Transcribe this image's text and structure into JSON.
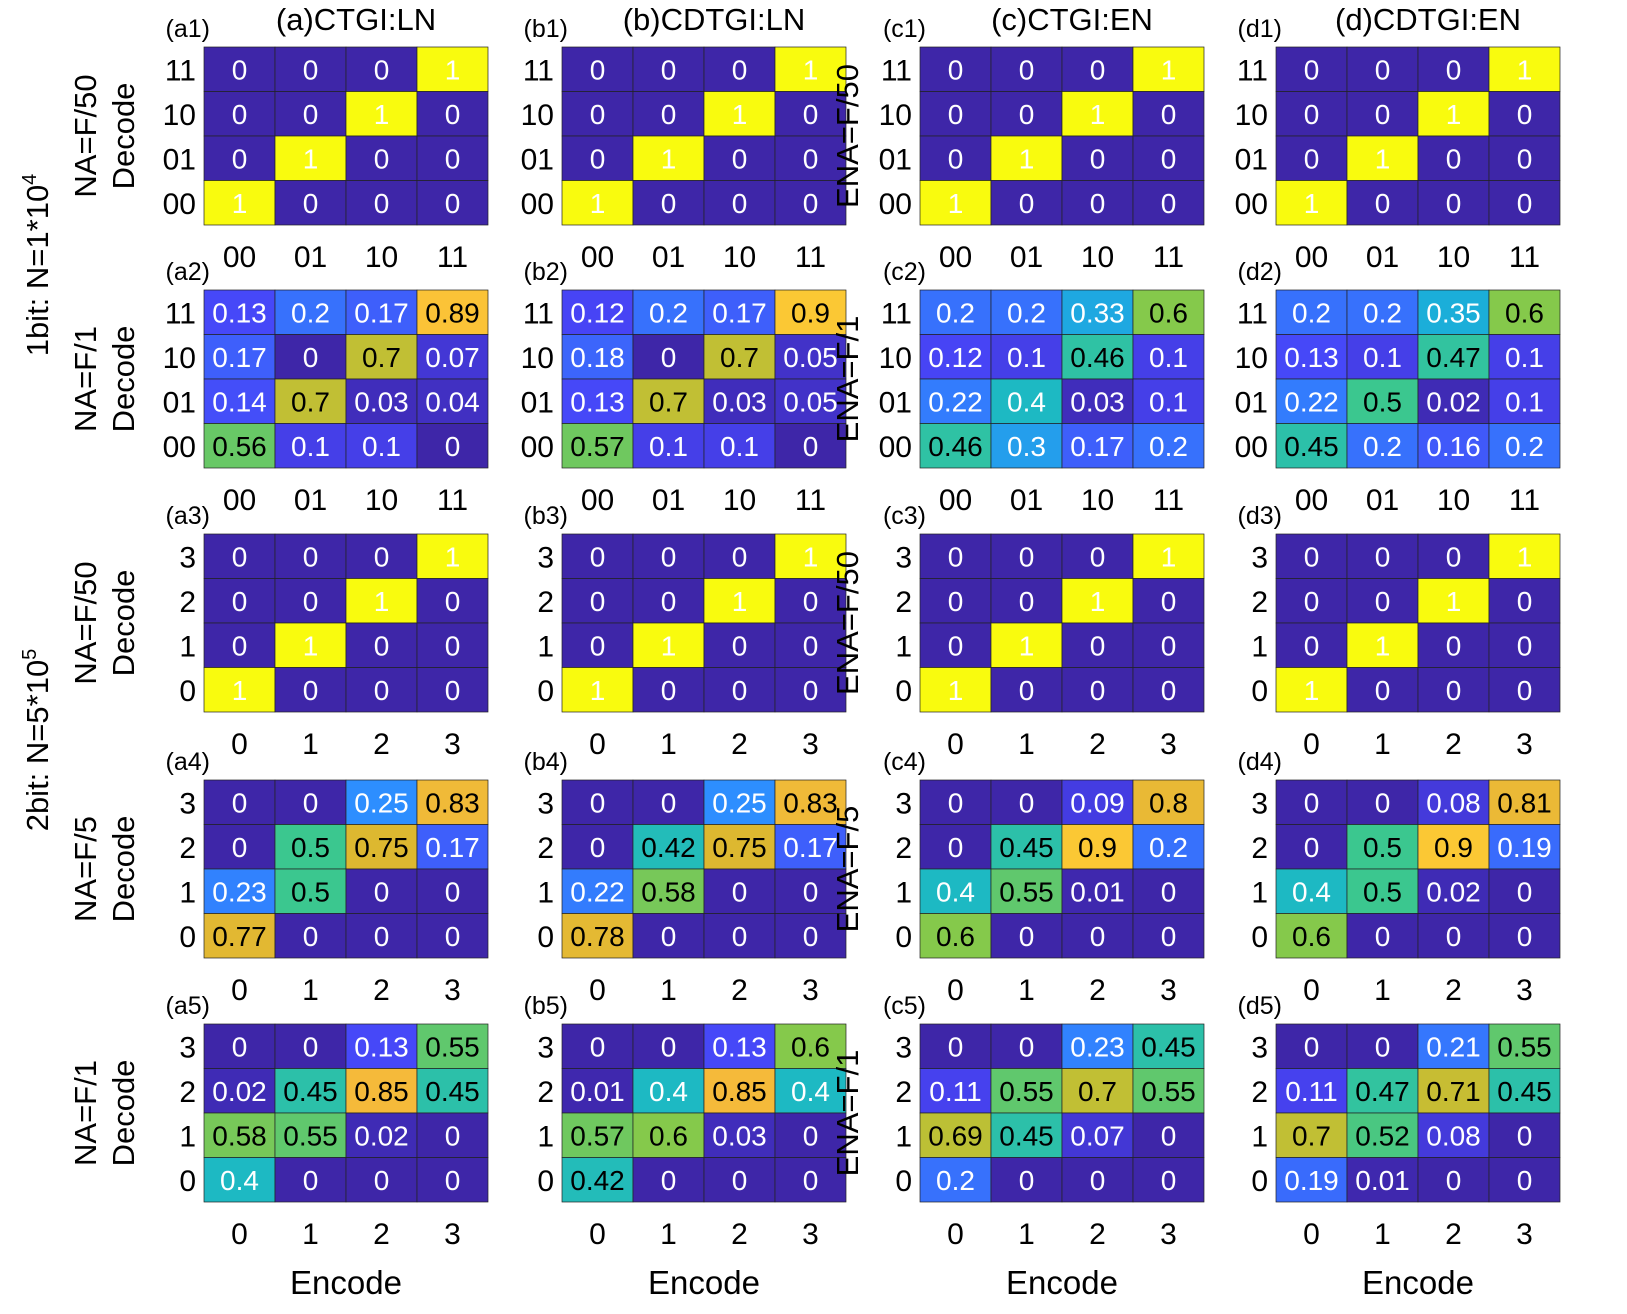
{
  "figure": {
    "row_group_labels": [
      {
        "id": "g1",
        "text": "1bit: N=1*10",
        "sup": "4"
      },
      {
        "id": "g2",
        "text": "2bit: N=5*10",
        "sup": "5"
      }
    ],
    "column_titles": [
      "(a)CTGI:LN",
      "(b)CDTGI:LN",
      "(c)CTGI:EN",
      "(d)CDTGI:EN"
    ],
    "xlabel": "Encode",
    "ylabel": "Decode",
    "colormap": [
      "#3e26a8",
      "#4745f8",
      "#2d8eff",
      "#16b6d0",
      "#3bc78f",
      "#98c93a",
      "#ddb830",
      "#fbbb3d",
      "#f9fb0e"
    ]
  },
  "chart_data": [
    {
      "type": "heatmap",
      "panel": "(a1)",
      "row_label": "NA=F/50",
      "ylabel": "Decode",
      "categories_x": [
        "00",
        "01",
        "10",
        "11"
      ],
      "categories_y": [
        "11",
        "10",
        "01",
        "00"
      ],
      "x_tick_labels": [
        "00",
        "01",
        "10",
        "11"
      ],
      "xlabel": "",
      "values": [
        [
          0,
          0,
          0,
          1
        ],
        [
          0,
          0,
          1,
          0
        ],
        [
          0,
          1,
          0,
          0
        ],
        [
          1,
          0,
          0,
          0
        ]
      ]
    },
    {
      "type": "heatmap",
      "panel": "(b1)",
      "row_label": "",
      "ylabel": "",
      "categories_x": [
        "00",
        "01",
        "10",
        "11"
      ],
      "categories_y": [
        "11",
        "10",
        "01",
        "00"
      ],
      "x_tick_labels": [
        "00",
        "01",
        "10",
        "11"
      ],
      "xlabel": "",
      "values": [
        [
          0,
          0,
          0,
          1
        ],
        [
          0,
          0,
          1,
          0
        ],
        [
          0,
          1,
          0,
          0
        ],
        [
          1,
          0,
          0,
          0
        ]
      ]
    },
    {
      "type": "heatmap",
      "panel": "(c1)",
      "row_label": "ENA=F/50",
      "ylabel": "",
      "categories_x": [
        "00",
        "01",
        "10",
        "11"
      ],
      "categories_y": [
        "11",
        "10",
        "01",
        "00"
      ],
      "x_tick_labels": [
        "00",
        "01",
        "10",
        "11"
      ],
      "xlabel": "",
      "values": [
        [
          0,
          0,
          0,
          1
        ],
        [
          0,
          0,
          1,
          0
        ],
        [
          0,
          1,
          0,
          0
        ],
        [
          1,
          0,
          0,
          0
        ]
      ]
    },
    {
      "type": "heatmap",
      "panel": "(d1)",
      "row_label": "",
      "ylabel": "",
      "categories_x": [
        "00",
        "01",
        "10",
        "11"
      ],
      "categories_y": [
        "11",
        "10",
        "01",
        "00"
      ],
      "x_tick_labels": [
        "00",
        "01",
        "10",
        "11"
      ],
      "xlabel": "",
      "values": [
        [
          0,
          0,
          0,
          1
        ],
        [
          0,
          0,
          1,
          0
        ],
        [
          0,
          1,
          0,
          0
        ],
        [
          1,
          0,
          0,
          0
        ]
      ]
    },
    {
      "type": "heatmap",
      "panel": "(a2)",
      "row_label": "NA=F/1",
      "ylabel": "Decode",
      "categories_x": [
        "00",
        "01",
        "10",
        "11"
      ],
      "categories_y": [
        "11",
        "10",
        "01",
        "00"
      ],
      "x_tick_labels": [
        "00",
        "01",
        "10",
        "11"
      ],
      "xlabel": "",
      "values": [
        [
          0.13,
          0.2,
          0.17,
          0.89
        ],
        [
          0.17,
          0,
          0.7,
          0.07
        ],
        [
          0.14,
          0.7,
          0.03,
          0.04
        ],
        [
          0.56,
          0.1,
          0.1,
          0
        ]
      ]
    },
    {
      "type": "heatmap",
      "panel": "(b2)",
      "row_label": "",
      "ylabel": "",
      "categories_x": [
        "00",
        "01",
        "10",
        "11"
      ],
      "categories_y": [
        "11",
        "10",
        "01",
        "00"
      ],
      "x_tick_labels": [
        "00",
        "01",
        "10",
        "11"
      ],
      "xlabel": "",
      "values": [
        [
          0.12,
          0.2,
          0.17,
          0.9
        ],
        [
          0.18,
          0,
          0.7,
          0.05
        ],
        [
          0.13,
          0.7,
          0.03,
          0.05
        ],
        [
          0.57,
          0.1,
          0.1,
          0
        ]
      ]
    },
    {
      "type": "heatmap",
      "panel": "(c2)",
      "row_label": "ENA=F/1",
      "ylabel": "",
      "categories_x": [
        "00",
        "01",
        "10",
        "11"
      ],
      "categories_y": [
        "11",
        "10",
        "01",
        "00"
      ],
      "x_tick_labels": [
        "00",
        "01",
        "10",
        "11"
      ],
      "xlabel": "",
      "values": [
        [
          0.2,
          0.2,
          0.33,
          0.6
        ],
        [
          0.12,
          0.1,
          0.46,
          0.1
        ],
        [
          0.22,
          0.4,
          0.03,
          0.1
        ],
        [
          0.46,
          0.3,
          0.17,
          0.2
        ]
      ]
    },
    {
      "type": "heatmap",
      "panel": "(d2)",
      "row_label": "",
      "ylabel": "",
      "categories_x": [
        "00",
        "01",
        "10",
        "11"
      ],
      "categories_y": [
        "11",
        "10",
        "01",
        "00"
      ],
      "x_tick_labels": [
        "00",
        "01",
        "10",
        "11"
      ],
      "xlabel": "",
      "values": [
        [
          0.2,
          0.2,
          0.35,
          0.6
        ],
        [
          0.13,
          0.1,
          0.47,
          0.1
        ],
        [
          0.22,
          0.5,
          0.02,
          0.1
        ],
        [
          0.45,
          0.2,
          0.16,
          0.2
        ]
      ]
    },
    {
      "type": "heatmap",
      "panel": "(a3)",
      "row_label": "NA=F/50",
      "ylabel": "Decode",
      "categories_x": [
        "0",
        "1",
        "2",
        "3"
      ],
      "categories_y": [
        "3",
        "2",
        "1",
        "0"
      ],
      "x_tick_labels": [
        "0",
        "1",
        "2",
        "3"
      ],
      "xlabel": "",
      "values": [
        [
          0,
          0,
          0,
          1
        ],
        [
          0,
          0,
          1,
          0
        ],
        [
          0,
          1,
          0,
          0
        ],
        [
          1,
          0,
          0,
          0
        ]
      ]
    },
    {
      "type": "heatmap",
      "panel": "(b3)",
      "row_label": "",
      "ylabel": "",
      "categories_x": [
        "0",
        "1",
        "2",
        "3"
      ],
      "categories_y": [
        "3",
        "2",
        "1",
        "0"
      ],
      "x_tick_labels": [
        "0",
        "1",
        "2",
        "3"
      ],
      "xlabel": "",
      "values": [
        [
          0,
          0,
          0,
          1
        ],
        [
          0,
          0,
          1,
          0
        ],
        [
          0,
          1,
          0,
          0
        ],
        [
          1,
          0,
          0,
          0
        ]
      ]
    },
    {
      "type": "heatmap",
      "panel": "(c3)",
      "row_label": "ENA=F/50",
      "ylabel": "",
      "categories_x": [
        "0",
        "1",
        "2",
        "3"
      ],
      "categories_y": [
        "3",
        "2",
        "1",
        "0"
      ],
      "x_tick_labels": [
        "0",
        "1",
        "2",
        "3"
      ],
      "xlabel": "",
      "values": [
        [
          0,
          0,
          0,
          1
        ],
        [
          0,
          0,
          1,
          0
        ],
        [
          0,
          1,
          0,
          0
        ],
        [
          1,
          0,
          0,
          0
        ]
      ]
    },
    {
      "type": "heatmap",
      "panel": "(d3)",
      "row_label": "",
      "ylabel": "",
      "categories_x": [
        "0",
        "1",
        "2",
        "3"
      ],
      "categories_y": [
        "3",
        "2",
        "1",
        "0"
      ],
      "x_tick_labels": [
        "0",
        "1",
        "2",
        "3"
      ],
      "xlabel": "",
      "values": [
        [
          0,
          0,
          0,
          1
        ],
        [
          0,
          0,
          1,
          0
        ],
        [
          0,
          1,
          0,
          0
        ],
        [
          1,
          0,
          0,
          0
        ]
      ]
    },
    {
      "type": "heatmap",
      "panel": "(a4)",
      "row_label": "NA=F/5",
      "ylabel": "Decode",
      "categories_x": [
        "0",
        "1",
        "2",
        "3"
      ],
      "categories_y": [
        "3",
        "2",
        "1",
        "0"
      ],
      "x_tick_labels": [
        "0",
        "1",
        "2",
        "3"
      ],
      "xlabel": "",
      "values": [
        [
          0,
          0,
          0.25,
          0.83
        ],
        [
          0,
          0.5,
          0.75,
          0.17
        ],
        [
          0.23,
          0.5,
          0,
          0
        ],
        [
          0.77,
          0,
          0,
          0
        ]
      ]
    },
    {
      "type": "heatmap",
      "panel": "(b4)",
      "row_label": "",
      "ylabel": "",
      "categories_x": [
        "0",
        "1",
        "2",
        "3"
      ],
      "categories_y": [
        "3",
        "2",
        "1",
        "0"
      ],
      "x_tick_labels": [
        "0",
        "1",
        "2",
        "3"
      ],
      "xlabel": "",
      "values": [
        [
          0,
          0,
          0.25,
          0.83
        ],
        [
          0,
          0.42,
          0.75,
          0.17
        ],
        [
          0.22,
          0.58,
          0,
          0
        ],
        [
          0.78,
          0,
          0,
          0
        ]
      ]
    },
    {
      "type": "heatmap",
      "panel": "(c4)",
      "row_label": "ENA=F/5",
      "ylabel": "",
      "categories_x": [
        "0",
        "1",
        "2",
        "3"
      ],
      "categories_y": [
        "3",
        "2",
        "1",
        "0"
      ],
      "x_tick_labels": [
        "0",
        "1",
        "2",
        "3"
      ],
      "xlabel": "",
      "values": [
        [
          0,
          0,
          0.09,
          0.8
        ],
        [
          0,
          0.45,
          0.9,
          0.2
        ],
        [
          0.4,
          0.55,
          0.01,
          0
        ],
        [
          0.6,
          0,
          0,
          0
        ]
      ]
    },
    {
      "type": "heatmap",
      "panel": "(d4)",
      "row_label": "",
      "ylabel": "",
      "categories_x": [
        "0",
        "1",
        "2",
        "3"
      ],
      "categories_y": [
        "3",
        "2",
        "1",
        "0"
      ],
      "x_tick_labels": [
        "0",
        "1",
        "2",
        "3"
      ],
      "xlabel": "",
      "values": [
        [
          0,
          0,
          0.08,
          0.81
        ],
        [
          0,
          0.5,
          0.9,
          0.19
        ],
        [
          0.4,
          0.5,
          0.02,
          0
        ],
        [
          0.6,
          0,
          0,
          0
        ]
      ]
    },
    {
      "type": "heatmap",
      "panel": "(a5)",
      "row_label": "NA=F/1",
      "ylabel": "Decode",
      "categories_x": [
        "0",
        "1",
        "2",
        "3"
      ],
      "categories_y": [
        "3",
        "2",
        "1",
        "0"
      ],
      "x_tick_labels": [
        "0",
        "1",
        "2",
        "3"
      ],
      "xlabel": "Encode",
      "values": [
        [
          0,
          0,
          0.13,
          0.55
        ],
        [
          0.02,
          0.45,
          0.85,
          0.45
        ],
        [
          0.58,
          0.55,
          0.02,
          0
        ],
        [
          0.4,
          0,
          0,
          0
        ]
      ]
    },
    {
      "type": "heatmap",
      "panel": "(b5)",
      "row_label": "",
      "ylabel": "",
      "categories_x": [
        "0",
        "1",
        "2",
        "3"
      ],
      "categories_y": [
        "3",
        "2",
        "1",
        "0"
      ],
      "x_tick_labels": [
        "0",
        "1",
        "2",
        "3"
      ],
      "xlabel": "Encode",
      "values": [
        [
          0,
          0,
          0.13,
          0.6
        ],
        [
          0.01,
          0.4,
          0.85,
          0.4
        ],
        [
          0.57,
          0.6,
          0.03,
          0
        ],
        [
          0.42,
          0,
          0,
          0
        ]
      ]
    },
    {
      "type": "heatmap",
      "panel": "(c5)",
      "row_label": "ENA=F/1",
      "ylabel": "",
      "categories_x": [
        "0",
        "1",
        "2",
        "3"
      ],
      "categories_y": [
        "3",
        "2",
        "1",
        "0"
      ],
      "x_tick_labels": [
        "0",
        "1",
        "2",
        "3"
      ],
      "xlabel": "Encode",
      "values": [
        [
          0,
          0,
          0.23,
          0.45
        ],
        [
          0.11,
          0.55,
          0.7,
          0.55
        ],
        [
          0.69,
          0.45,
          0.07,
          0
        ],
        [
          0.2,
          0,
          0,
          0
        ]
      ]
    },
    {
      "type": "heatmap",
      "panel": "(d5)",
      "row_label": "",
      "ylabel": "",
      "categories_x": [
        "0",
        "1",
        "2",
        "3"
      ],
      "categories_y": [
        "3",
        "2",
        "1",
        "0"
      ],
      "x_tick_labels": [
        "0",
        "1",
        "2",
        "3"
      ],
      "xlabel": "Encode",
      "values": [
        [
          0,
          0,
          0.21,
          0.55
        ],
        [
          0.11,
          0.47,
          0.71,
          0.45
        ],
        [
          0.7,
          0.52,
          0.08,
          0
        ],
        [
          0.19,
          0.01,
          0,
          0
        ]
      ]
    }
  ]
}
